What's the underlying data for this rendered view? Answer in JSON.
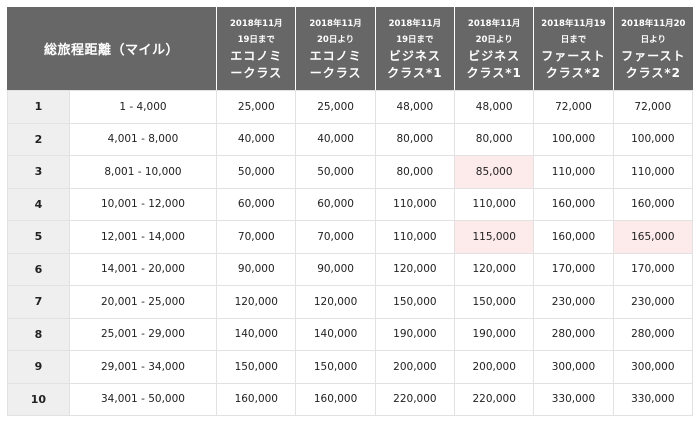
{
  "table": {
    "header": {
      "distance": "総旅程距離（マイル）",
      "columns": [
        {
          "line1": "2018年11月",
          "line2": "19日まで",
          "line3": "エコノミ",
          "line4": "ークラス"
        },
        {
          "line1": "2018年11月",
          "line2": "20日より",
          "line3": "エコノミ",
          "line4": "ークラス"
        },
        {
          "line1": "2018年11月",
          "line2": "19日まで",
          "line3": "ビジネス",
          "line4": "クラス*1"
        },
        {
          "line1": "2018年11月",
          "line2": "20日より",
          "line3": "ビジネス",
          "line4": "クラス*1"
        },
        {
          "line1": "2018年11月19",
          "line2": "日まで",
          "line3": "ファースト",
          "line4": "クラス*2"
        },
        {
          "line1": "2018年11月20",
          "line2": "日より",
          "line3": "ファースト",
          "line4": "クラス*2"
        }
      ]
    },
    "rows": [
      {
        "zone": "1",
        "range": "1 - 4,000",
        "values": [
          "25,000",
          "25,000",
          "48,000",
          "48,000",
          "72,000",
          "72,000"
        ]
      },
      {
        "zone": "2",
        "range": "4,001 - 8,000",
        "values": [
          "40,000",
          "40,000",
          "80,000",
          "80,000",
          "100,000",
          "100,000"
        ]
      },
      {
        "zone": "3",
        "range": "8,001 - 10,000",
        "values": [
          "50,000",
          "50,000",
          "80,000",
          "85,000",
          "110,000",
          "110,000"
        ]
      },
      {
        "zone": "4",
        "range": "10,001 - 12,000",
        "values": [
          "60,000",
          "60,000",
          "110,000",
          "110,000",
          "160,000",
          "160,000"
        ]
      },
      {
        "zone": "5",
        "range": "12,001 - 14,000",
        "values": [
          "70,000",
          "70,000",
          "110,000",
          "115,000",
          "160,000",
          "165,000"
        ]
      },
      {
        "zone": "6",
        "range": "14,001 - 20,000",
        "values": [
          "90,000",
          "90,000",
          "120,000",
          "120,000",
          "170,000",
          "170,000"
        ]
      },
      {
        "zone": "7",
        "range": "20,001 - 25,000",
        "values": [
          "120,000",
          "120,000",
          "150,000",
          "150,000",
          "230,000",
          "230,000"
        ]
      },
      {
        "zone": "8",
        "range": "25,001 - 29,000",
        "values": [
          "140,000",
          "140,000",
          "190,000",
          "190,000",
          "280,000",
          "280,000"
        ]
      },
      {
        "zone": "9",
        "range": "29,001 - 34,000",
        "values": [
          "150,000",
          "150,000",
          "200,000",
          "200,000",
          "300,000",
          "300,000"
        ]
      },
      {
        "zone": "10",
        "range": "34,001 - 50,000",
        "values": [
          "160,000",
          "160,000",
          "220,000",
          "220,000",
          "330,000",
          "330,000"
        ]
      }
    ],
    "highlights": [
      [
        2,
        3
      ],
      [
        4,
        3
      ],
      [
        4,
        5
      ]
    ],
    "colors": {
      "header_bg": "#676767",
      "zone_bg": "#efefef",
      "highlight_bg": "#fdeaea",
      "border": "#e2e2e2"
    }
  }
}
